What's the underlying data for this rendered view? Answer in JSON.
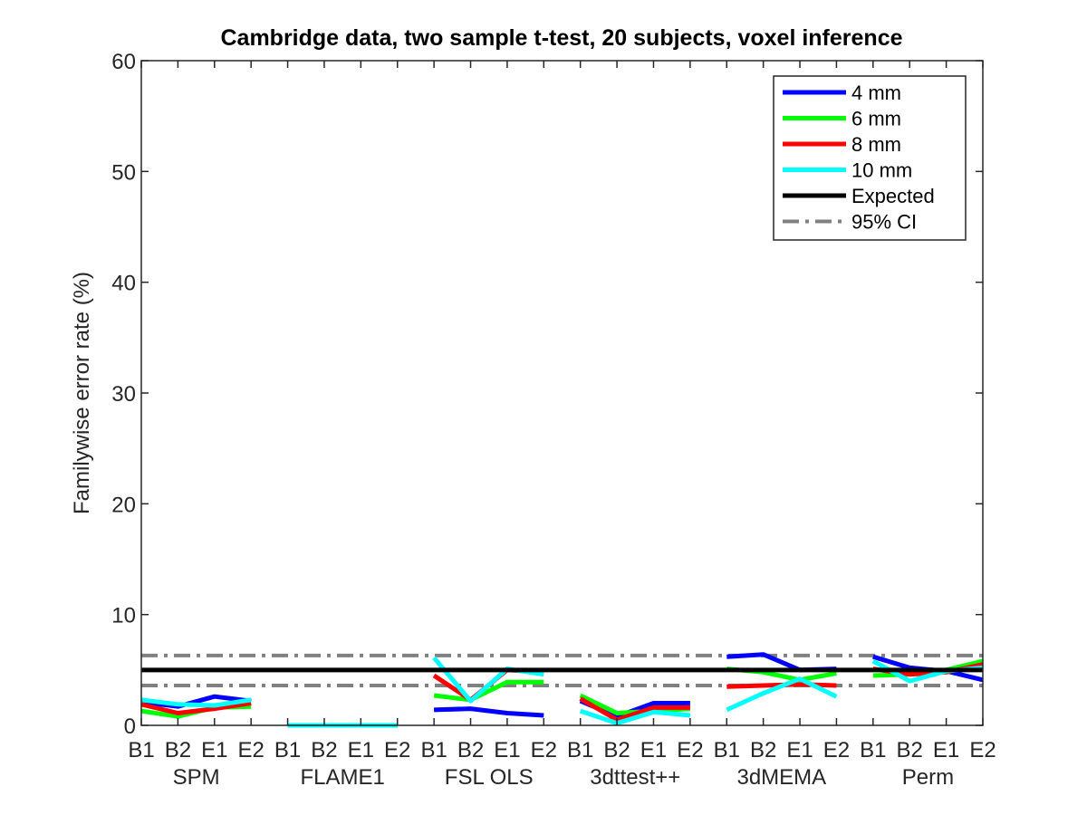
{
  "chart_data": {
    "type": "line",
    "title": "Cambridge data, two sample t-test, 20 subjects, voxel inference",
    "ylabel": "Familywise error rate (%)",
    "xlabel": "",
    "ylim": [
      0,
      60
    ],
    "yticks": [
      0,
      10,
      20,
      30,
      40,
      50,
      60
    ],
    "x_ticks": [
      "B1",
      "B2",
      "E1",
      "E2",
      "B1",
      "B2",
      "E1",
      "E2",
      "B1",
      "B2",
      "E1",
      "E2",
      "B1",
      "B2",
      "E1",
      "E2",
      "B1",
      "B2",
      "E1",
      "E2",
      "B1",
      "B2",
      "E1",
      "E2"
    ],
    "groups": [
      "SPM",
      "FLAME1",
      "FSL OLS",
      "3dttest++",
      "3dMEMA",
      "Perm"
    ],
    "grid": false,
    "legend_position": "top-right",
    "series": [
      {
        "name": "4 mm",
        "color": "#0000ff",
        "values": [
          [
            2.1,
            1.7,
            2.6,
            2.2
          ],
          [
            0,
            0,
            0,
            0
          ],
          [
            1.4,
            1.5,
            1.1,
            0.9
          ],
          [
            2.2,
            0.8,
            2.0,
            2.0
          ],
          [
            6.2,
            6.4,
            5.0,
            5.1
          ],
          [
            6.2,
            5.2,
            4.9,
            4.1
          ]
        ]
      },
      {
        "name": "6 mm",
        "color": "#00ff00",
        "values": [
          [
            1.3,
            0.8,
            1.6,
            1.7
          ],
          [
            0,
            0,
            0,
            0
          ],
          [
            2.7,
            2.3,
            3.9,
            3.9
          ],
          [
            2.7,
            1.1,
            1.3,
            1.5
          ],
          [
            5.1,
            4.8,
            4.1,
            4.7
          ],
          [
            4.5,
            4.6,
            5.0,
            5.8
          ]
        ]
      },
      {
        "name": "8 mm",
        "color": "#ff0000",
        "values": [
          [
            1.9,
            1.1,
            1.5,
            2.0
          ],
          [
            0,
            0,
            0,
            0
          ],
          [
            4.5,
            2.3,
            5.0,
            4.8
          ],
          [
            2.4,
            0.5,
            1.6,
            1.6
          ],
          [
            3.5,
            3.6,
            3.7,
            3.6
          ],
          [
            5.1,
            4.6,
            4.8,
            5.5
          ]
        ]
      },
      {
        "name": "10 mm",
        "color": "#00ffff",
        "values": [
          [
            2.3,
            1.9,
            1.8,
            2.3
          ],
          [
            0,
            0,
            0,
            0
          ],
          [
            6.1,
            2.2,
            5.1,
            4.6
          ],
          [
            1.3,
            0.2,
            1.2,
            0.9
          ],
          [
            1.4,
            2.9,
            4.2,
            2.6
          ],
          [
            5.8,
            4.0,
            4.9,
            5.2
          ]
        ]
      },
      {
        "name": "Expected",
        "color": "#000000",
        "constant": 5
      },
      {
        "name": "95% CI",
        "color": "#808080",
        "style": "dash-dot",
        "constant_pair": [
          3.6,
          6.3
        ]
      }
    ]
  }
}
